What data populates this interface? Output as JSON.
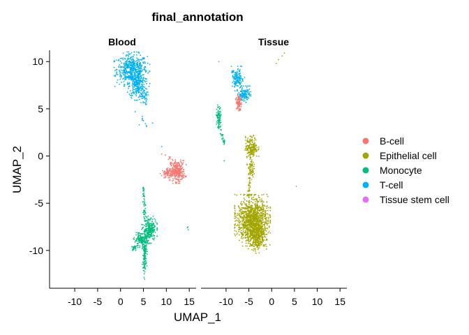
{
  "chart_data": {
    "type": "scatter",
    "title": "final_annotation",
    "xlabel": "UMAP_1",
    "ylabel": "UMAP_2",
    "xlim": [
      -15.5,
      16.5
    ],
    "ylim": [
      -14,
      11.2
    ],
    "xticks": [
      -10,
      -5,
      0,
      5,
      10,
      15
    ],
    "yticks": [
      10,
      5,
      0,
      -5,
      -10
    ],
    "grid": false,
    "legend_position": "right",
    "facets": [
      "Blood",
      "Tissue"
    ],
    "legend": [
      {
        "name": "B-cell",
        "color": "#F8766D"
      },
      {
        "name": "Epithelial cell",
        "color": "#A3A500"
      },
      {
        "name": "Monocyte",
        "color": "#00BF7D"
      },
      {
        "name": "T-cell",
        "color": "#00B0F6"
      },
      {
        "name": "Tissue stem cell",
        "color": "#E76BF3"
      }
    ],
    "clusters": [
      {
        "facet": "Blood",
        "series": "T-cell",
        "shape": "blob",
        "x": 2.5,
        "y": 9.2,
        "rx": 3.0,
        "ry": 1.4,
        "n": 500
      },
      {
        "facet": "Blood",
        "series": "T-cell",
        "shape": "blob",
        "x": 3.6,
        "y": 7.6,
        "rx": 1.6,
        "ry": 1.3,
        "n": 260
      },
      {
        "facet": "Blood",
        "series": "T-cell",
        "shape": "blob",
        "x": 5.0,
        "y": 6.3,
        "rx": 0.8,
        "ry": 0.8,
        "n": 50
      },
      {
        "facet": "Blood",
        "series": "T-cell",
        "shape": "line",
        "x1": 4.5,
        "y1": 4.2,
        "x2": 5.5,
        "y2": 3.2,
        "n": 8
      },
      {
        "facet": "Blood",
        "series": "T-cell",
        "shape": "points",
        "points": [
          [
            3.2,
            4.7
          ],
          [
            4.1,
            3.3
          ],
          [
            7.0,
            3.5
          ],
          [
            9.0,
            1.0
          ]
        ]
      },
      {
        "facet": "Blood",
        "series": "B-cell",
        "shape": "blob",
        "x": 12.5,
        "y": -1.6,
        "rx": 1.4,
        "ry": 1.0,
        "n": 280
      },
      {
        "facet": "Blood",
        "series": "B-cell",
        "shape": "blob",
        "x": 10.5,
        "y": -1.8,
        "rx": 1.4,
        "ry": 0.4,
        "n": 90
      },
      {
        "facet": "Blood",
        "series": "B-cell",
        "shape": "line",
        "x1": 10.6,
        "y1": 0.1,
        "x2": 11.0,
        "y2": -0.8,
        "n": 10
      },
      {
        "facet": "Blood",
        "series": "B-cell",
        "shape": "points",
        "points": [
          [
            9.0,
            0.2
          ],
          [
            9.8,
            0.1
          ]
        ]
      },
      {
        "facet": "Blood",
        "series": "Monocyte",
        "shape": "blob",
        "x": 6.3,
        "y": -7.8,
        "rx": 1.3,
        "ry": 1.1,
        "n": 260
      },
      {
        "facet": "Blood",
        "series": "Monocyte",
        "shape": "blob",
        "x": 4.5,
        "y": -8.9,
        "rx": 1.3,
        "ry": 0.6,
        "n": 150
      },
      {
        "facet": "Blood",
        "series": "Monocyte",
        "shape": "blob",
        "x": 5.3,
        "y": -10.3,
        "rx": 0.45,
        "ry": 1.2,
        "n": 110
      },
      {
        "facet": "Blood",
        "series": "Monocyte",
        "shape": "line",
        "x1": 5.0,
        "y1": -3.3,
        "x2": 5.3,
        "y2": -6.5,
        "n": 45
      },
      {
        "facet": "Blood",
        "series": "Monocyte",
        "shape": "line",
        "x1": 5.2,
        "y1": -11.2,
        "x2": 5.2,
        "y2": -13.0,
        "n": 20
      },
      {
        "facet": "Blood",
        "series": "Monocyte",
        "shape": "blob",
        "x": 3.0,
        "y": -9.7,
        "rx": 0.6,
        "ry": 0.3,
        "n": 30
      },
      {
        "facet": "Blood",
        "series": "Monocyte",
        "shape": "points",
        "points": [
          [
            14.7,
            -7.5
          ],
          [
            14.8,
            -7.8
          ],
          [
            14.6,
            -7.6
          ]
        ]
      },
      {
        "facet": "Tissue",
        "series": "T-cell",
        "shape": "blob",
        "x": -7.5,
        "y": 8.2,
        "rx": 1.2,
        "ry": 1.0,
        "n": 150
      },
      {
        "facet": "Tissue",
        "series": "T-cell",
        "shape": "blob",
        "x": -6.0,
        "y": 6.5,
        "rx": 1.1,
        "ry": 0.7,
        "n": 130
      },
      {
        "facet": "Tissue",
        "series": "B-cell",
        "shape": "blob",
        "x": -7.2,
        "y": 5.7,
        "rx": 0.55,
        "ry": 0.7,
        "n": 90
      },
      {
        "facet": "Tissue",
        "series": "Monocyte",
        "shape": "blob",
        "x": -11.6,
        "y": 4.1,
        "rx": 0.5,
        "ry": 1.0,
        "n": 90
      },
      {
        "facet": "Tissue",
        "series": "Monocyte",
        "shape": "line",
        "x1": -11.3,
        "y1": 3.0,
        "x2": -10.2,
        "y2": 1.0,
        "n": 25
      },
      {
        "facet": "Tissue",
        "series": "Monocyte",
        "shape": "points",
        "points": [
          [
            -11.8,
            5.2
          ],
          [
            -10.4,
            -0.5
          ]
        ]
      },
      {
        "facet": "Tissue",
        "series": "Epithelial cell",
        "shape": "blob",
        "x": -4.4,
        "y": 0.9,
        "rx": 1.2,
        "ry": 1.0,
        "n": 200
      },
      {
        "facet": "Tissue",
        "series": "Epithelial cell",
        "shape": "blob",
        "x": -4.6,
        "y": -1.3,
        "rx": 0.6,
        "ry": 0.9,
        "n": 70
      },
      {
        "facet": "Tissue",
        "series": "Epithelial cell",
        "shape": "line",
        "x1": -4.8,
        "y1": -2.3,
        "x2": -5.0,
        "y2": -4.5,
        "n": 30
      },
      {
        "facet": "Tissue",
        "series": "Epithelial cell",
        "shape": "blob",
        "x": -4.2,
        "y": -6.8,
        "rx": 3.0,
        "ry": 2.1,
        "n": 1200
      },
      {
        "facet": "Tissue",
        "series": "Epithelial cell",
        "shape": "blob",
        "x": -3.2,
        "y": -8.6,
        "rx": 1.6,
        "ry": 1.3,
        "n": 300
      },
      {
        "facet": "Tissue",
        "series": "Epithelial cell",
        "shape": "points",
        "points": [
          [
            1.5,
            10.2
          ],
          [
            2.3,
            10.6
          ],
          [
            2.8,
            10.9
          ],
          [
            1.0,
            9.8
          ]
        ]
      },
      {
        "facet": "Tissue",
        "series": "Tissue stem cell",
        "shape": "points",
        "points": [
          [
            -11.6,
            10.0
          ],
          [
            5.4,
            -3.2
          ]
        ]
      }
    ]
  }
}
